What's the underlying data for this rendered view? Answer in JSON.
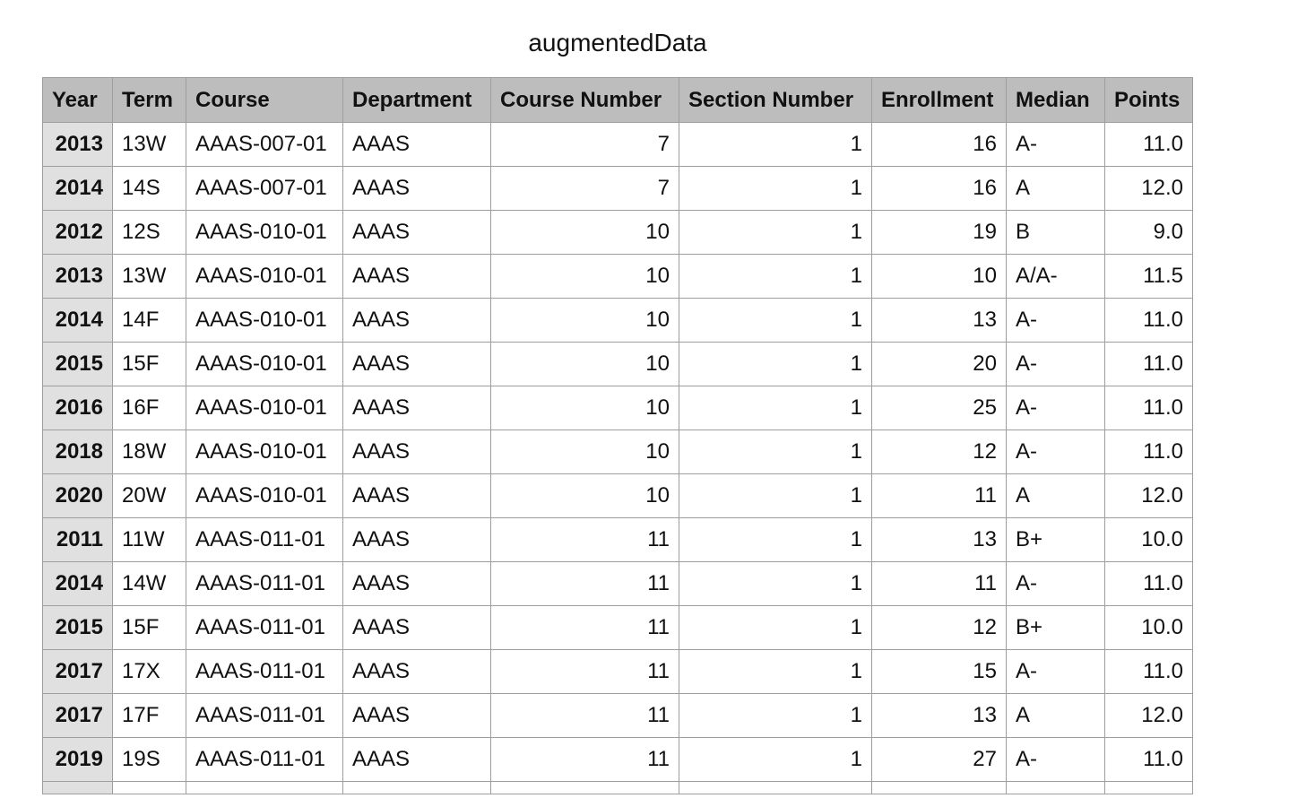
{
  "title": "augmentedData",
  "columns": [
    "Year",
    "Term",
    "Course",
    "Department",
    "Course Number",
    "Section Number",
    "Enrollment",
    "Median",
    "Points"
  ],
  "rows": [
    [
      "2013",
      "13W",
      "AAAS-007-01",
      "AAAS",
      "7",
      "1",
      "16",
      "A-",
      "11.0"
    ],
    [
      "2014",
      "14S",
      "AAAS-007-01",
      "AAAS",
      "7",
      "1",
      "16",
      "A",
      "12.0"
    ],
    [
      "2012",
      "12S",
      "AAAS-010-01",
      "AAAS",
      "10",
      "1",
      "19",
      "B",
      "9.0"
    ],
    [
      "2013",
      "13W",
      "AAAS-010-01",
      "AAAS",
      "10",
      "1",
      "10",
      "A/A-",
      "11.5"
    ],
    [
      "2014",
      "14F",
      "AAAS-010-01",
      "AAAS",
      "10",
      "1",
      "13",
      "A-",
      "11.0"
    ],
    [
      "2015",
      "15F",
      "AAAS-010-01",
      "AAAS",
      "10",
      "1",
      "20",
      "A-",
      "11.0"
    ],
    [
      "2016",
      "16F",
      "AAAS-010-01",
      "AAAS",
      "10",
      "1",
      "25",
      "A-",
      "11.0"
    ],
    [
      "2018",
      "18W",
      "AAAS-010-01",
      "AAAS",
      "10",
      "1",
      "12",
      "A-",
      "11.0"
    ],
    [
      "2020",
      "20W",
      "AAAS-010-01",
      "AAAS",
      "10",
      "1",
      "11",
      "A",
      "12.0"
    ],
    [
      "2011",
      "11W",
      "AAAS-011-01",
      "AAAS",
      "11",
      "1",
      "13",
      "B+",
      "10.0"
    ],
    [
      "2014",
      "14W",
      "AAAS-011-01",
      "AAAS",
      "11",
      "1",
      "11",
      "A-",
      "11.0"
    ],
    [
      "2015",
      "15F",
      "AAAS-011-01",
      "AAAS",
      "11",
      "1",
      "12",
      "B+",
      "10.0"
    ],
    [
      "2017",
      "17X",
      "AAAS-011-01",
      "AAAS",
      "11",
      "1",
      "15",
      "A-",
      "11.0"
    ],
    [
      "2017",
      "17F",
      "AAAS-011-01",
      "AAAS",
      "11",
      "1",
      "13",
      "A",
      "12.0"
    ],
    [
      "2019",
      "19S",
      "AAAS-011-01",
      "AAAS",
      "11",
      "1",
      "27",
      "A-",
      "11.0"
    ]
  ],
  "colors": {
    "header_bg": "#bdbdbd",
    "year_col_bg": "#e0e0e0",
    "grid": "#9e9e9e"
  }
}
